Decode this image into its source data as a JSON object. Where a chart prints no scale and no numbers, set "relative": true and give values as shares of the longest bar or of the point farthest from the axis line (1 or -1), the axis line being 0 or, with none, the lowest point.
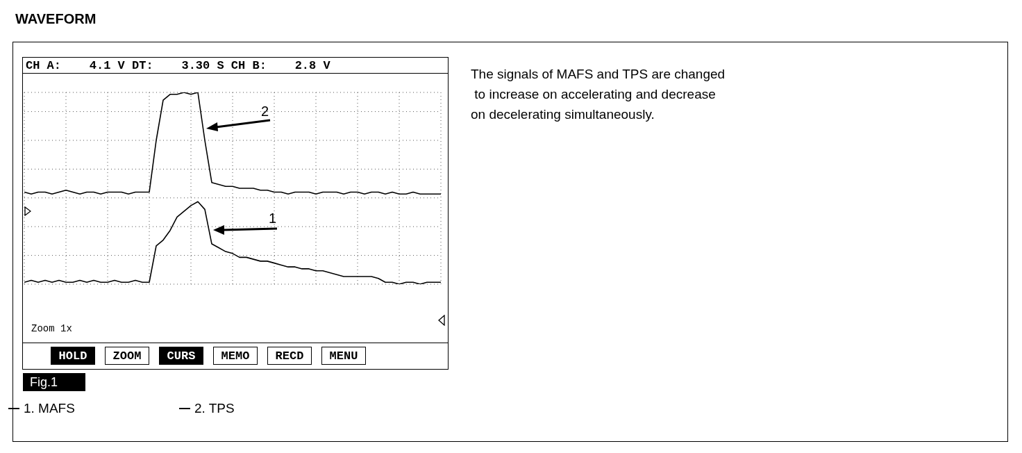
{
  "chart_data": {
    "type": "line",
    "title": "WAVEFORM",
    "relative": true,
    "grid": true,
    "legend": "bottom",
    "marker": "none",
    "line_style": "solid",
    "categories": [
      null,
      null,
      null,
      null,
      null,
      null,
      null,
      null,
      null,
      null,
      null,
      null,
      null,
      null,
      null,
      null,
      null,
      null,
      null,
      null,
      null,
      null,
      null,
      null,
      null,
      null,
      null,
      null,
      null,
      null,
      null,
      null,
      null,
      null,
      null,
      null,
      null,
      null,
      null,
      null,
      null,
      null,
      null,
      null,
      null,
      null,
      null,
      null,
      null,
      null,
      null,
      null,
      null,
      null,
      null,
      null,
      null,
      null,
      null,
      null,
      null
    ],
    "series": [
      {
        "name": "1. MAFS",
        "color": "#000000",
        "values": [
          0.01,
          0.02,
          0.01,
          0.02,
          0.01,
          0.02,
          0.01,
          0.01,
          0.02,
          0.01,
          0.02,
          0.01,
          0.01,
          0.02,
          0.01,
          0.01,
          0.02,
          0.01,
          0.01,
          0.2,
          0.23,
          0.28,
          0.35,
          0.38,
          0.41,
          0.43,
          0.39,
          0.21,
          0.19,
          0.17,
          0.16,
          0.14,
          0.14,
          0.13,
          0.12,
          0.12,
          0.11,
          0.1,
          0.09,
          0.09,
          0.08,
          0.08,
          0.07,
          0.07,
          0.06,
          0.05,
          0.04,
          0.04,
          0.04,
          0.04,
          0.04,
          0.03,
          0.01,
          0.01,
          0,
          0.01,
          0.01,
          0,
          0.01,
          0.01,
          0.01
        ]
      },
      {
        "name": "2. TPS",
        "color": "#000000",
        "values": [
          0.48,
          0.47,
          0.48,
          0.48,
          0.47,
          0.48,
          0.49,
          0.48,
          0.47,
          0.48,
          0.48,
          0.47,
          0.48,
          0.48,
          0.48,
          0.47,
          0.48,
          0.48,
          0.48,
          0.75,
          0.96,
          0.99,
          0.99,
          1,
          0.99,
          1,
          0.75,
          0.53,
          0.52,
          0.51,
          0.51,
          0.5,
          0.5,
          0.5,
          0.49,
          0.49,
          0.48,
          0.48,
          0.47,
          0.48,
          0.48,
          0.48,
          0.47,
          0.48,
          0.48,
          0.48,
          0.47,
          0.48,
          0.48,
          0.47,
          0.48,
          0.48,
          0.47,
          0.48,
          0.47,
          0.47,
          0.48,
          0.47,
          0.47,
          0.47,
          0.47
        ]
      }
    ],
    "annotations": [
      "CH A:    4.1 V DT:    3.30 S CH B:    2.8 V",
      "Zoom 1x",
      "HOLD",
      "ZOOM",
      "CURS",
      "MEMO",
      "RECD",
      "MENU",
      "Fig.1",
      "The signals of MAFS and TPS are changed\n to increase on accelerating and decrease\non decelerating simultaneously.",
      "1",
      "2"
    ]
  }
}
